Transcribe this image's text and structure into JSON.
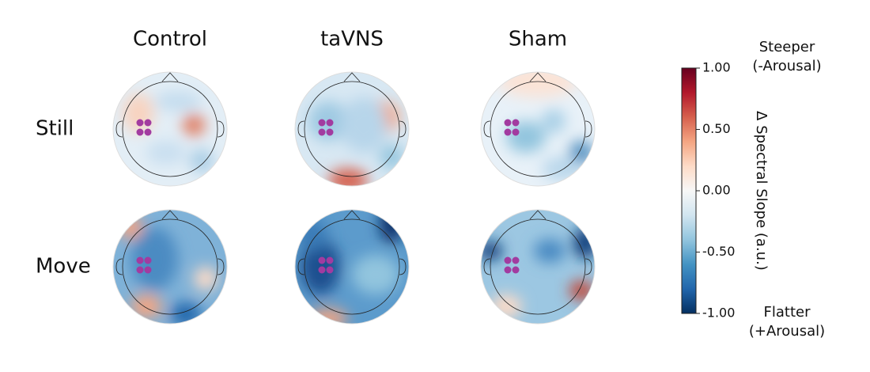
{
  "chart_data": {
    "type": "topomap",
    "columns": [
      "Control",
      "taVNS",
      "Sham"
    ],
    "rows": [
      "Still",
      "Move"
    ],
    "colorbar": {
      "label": "Δ Spectral Slope (a.u.)",
      "lim": [
        -1,
        1
      ],
      "ticks": [
        {
          "value": 1,
          "label": "1.00"
        },
        {
          "value": 0.5,
          "label": "0.50"
        },
        {
          "value": 0,
          "label": "0.00"
        },
        {
          "value": -0.5,
          "label": "-0.50"
        },
        {
          "value": -1,
          "label": "-1.00"
        }
      ],
      "top_label": [
        "Steeper",
        "(-Arousal)"
      ],
      "bottom_label": [
        "Flatter",
        "(+Arousal)"
      ]
    }
  }
}
